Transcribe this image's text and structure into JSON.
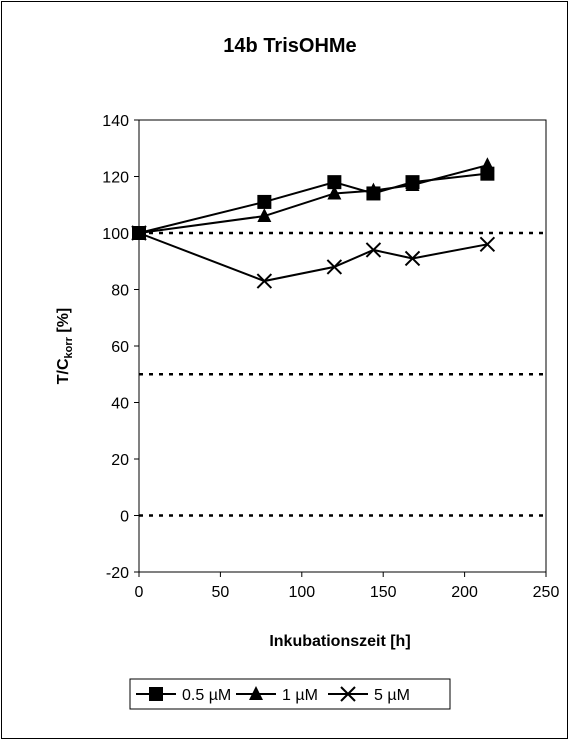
{
  "chart_data": {
    "type": "line",
    "title": "14b TrisOHMe",
    "ylabel_main": "T/C",
    "ylabel_sub": "korr",
    "ylabel_suffix": " [%]",
    "xlabel": "Inkubationszeit [h]",
    "xlim": [
      0,
      250
    ],
    "ylim": [
      -20,
      140
    ],
    "xticks": [
      0,
      50,
      100,
      150,
      200,
      250
    ],
    "yticks": [
      -20,
      0,
      20,
      40,
      60,
      80,
      100,
      120,
      140
    ],
    "reference_lines": [
      100,
      50,
      0
    ],
    "grid": false,
    "legend_position": "bottom",
    "series": [
      {
        "name": "0.5 µM",
        "marker": "square",
        "x": [
          0,
          77,
          120,
          144,
          168,
          214
        ],
        "y": [
          100,
          111,
          118,
          114,
          118,
          121
        ]
      },
      {
        "name": "1 µM",
        "marker": "triangle",
        "x": [
          0,
          77,
          120,
          144,
          168,
          214
        ],
        "y": [
          100,
          106,
          114,
          115,
          117,
          124
        ]
      },
      {
        "name": "5 µM",
        "marker": "x",
        "x": [
          0,
          77,
          120,
          144,
          168,
          214
        ],
        "y": [
          100,
          83,
          88,
          94,
          91,
          96
        ]
      }
    ]
  }
}
